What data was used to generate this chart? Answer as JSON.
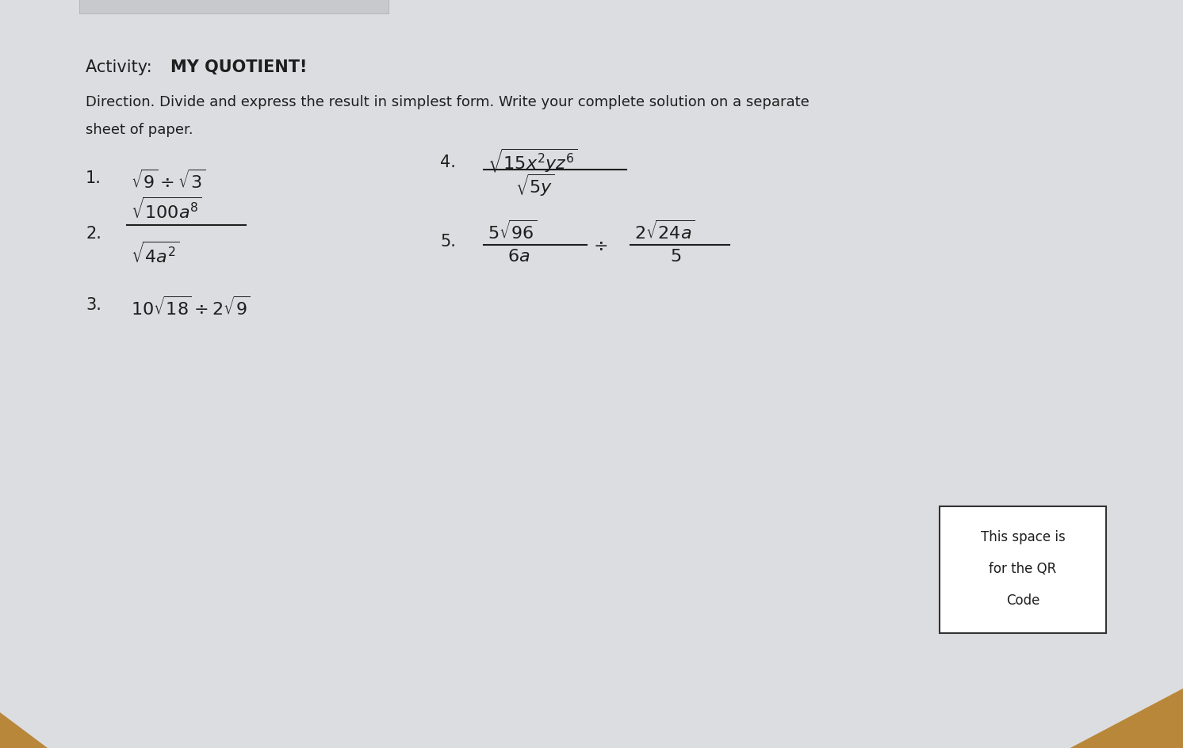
{
  "bg_wood_color": "#c8a060",
  "paper_color": "#dcdde0",
  "title_prefix": "Activity:  ",
  "title_bold": "MY QUOTIENT!",
  "direction_line1": "Direction. Divide and express the result in simplest form. Write your complete solution on a separate",
  "direction_line2": "sheet of paper.",
  "text_color": "#1e1e1e",
  "font_size_title": 15,
  "font_size_direction": 13,
  "font_size_items": 16,
  "qr_text": [
    "This space is",
    "for the QR",
    "Code"
  ],
  "item1_num": "1.",
  "item1_math": "$\\sqrt{9} \\div \\sqrt{3}$",
  "item2_num": "2.",
  "item2_numer": "$\\sqrt{100a^8}$",
  "item2_denom": "$\\sqrt{4a^2}$",
  "item3_num": "3.",
  "item3_math": "$10\\sqrt{18} \\div 2\\sqrt{9}$",
  "item4_num": "4.",
  "item4_numer": "$\\sqrt{15x^2yz^6}$",
  "item4_denom": "$\\sqrt{5y}$",
  "item5_num": "5.",
  "item5_numer_l": "$5\\sqrt{96}$",
  "item5_denom_l": "$6a$",
  "item5_div": "$\\div$",
  "item5_numer_r": "$2\\sqrt{24a}$",
  "item5_denom_r": "$5$"
}
